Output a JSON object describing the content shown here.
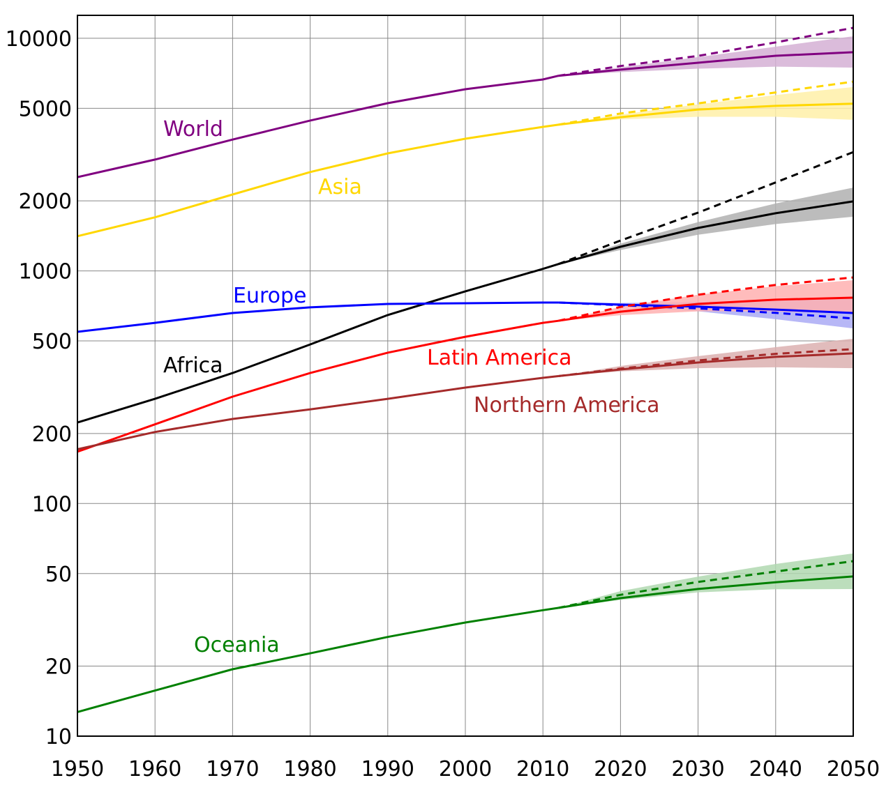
{
  "chart_data": {
    "type": "line",
    "title": "",
    "xlabel": "",
    "ylabel": "",
    "y_scale": "log",
    "xlim": [
      1950,
      2050
    ],
    "ylim": [
      10,
      12500
    ],
    "grid": true,
    "x_ticks": [
      "1950",
      "1960",
      "1970",
      "1980",
      "1990",
      "2000",
      "2010",
      "2020",
      "2030",
      "2040",
      "2050"
    ],
    "y_ticks": [
      "10",
      "20",
      "50",
      "100",
      "200",
      "500",
      "1000",
      "2000",
      "5000",
      "10000"
    ],
    "x": [
      1950,
      1960,
      1970,
      1980,
      1990,
      2000,
      2010
    ],
    "projection_years": [
      2012,
      2020,
      2030,
      2040,
      2050
    ],
    "series": [
      {
        "name": "World",
        "color": "#800080",
        "band_color": "#d5b0d5",
        "values": [
          2530,
          3010,
          3670,
          4430,
          5260,
          6040,
          6650
        ],
        "projection_median": [
          6900,
          7330,
          7850,
          8410,
          8710
        ],
        "projection_high": [
          6900,
          7600,
          8400,
          9600,
          11090
        ],
        "projection_band_low": [
          6900,
          7150,
          7400,
          7550,
          7480
        ],
        "projection_band_high": [
          6900,
          7500,
          8300,
          9200,
          10200
        ]
      },
      {
        "name": "Asia",
        "color": "#ffd700",
        "band_color": "#fff0a8",
        "values": [
          1410,
          1700,
          2130,
          2660,
          3200,
          3700,
          4160
        ],
        "projection_median": [
          4250,
          4580,
          4940,
          5120,
          5230
        ],
        "projection_high": [
          4250,
          4750,
          5250,
          5850,
          6510
        ],
        "projection_band_low": [
          4250,
          4480,
          4600,
          4600,
          4460
        ],
        "projection_band_high": [
          4250,
          4700,
          5200,
          5700,
          6170
        ]
      },
      {
        "name": "Africa",
        "color": "#000000",
        "band_color": "#b0b0b0",
        "values": [
          223,
          282,
          364,
          483,
          646,
          817,
          1020
        ],
        "projection_median": [
          1070,
          1270,
          1530,
          1770,
          1990
        ],
        "projection_high": [
          1070,
          1350,
          1780,
          2400,
          3240
        ],
        "projection_band_low": [
          1070,
          1230,
          1430,
          1590,
          1710
        ],
        "projection_band_high": [
          1070,
          1310,
          1620,
          1950,
          2280
        ]
      },
      {
        "name": "Europe",
        "color": "#0000ff",
        "band_color": "#aaaaf5",
        "values": [
          547,
          598,
          659,
          697,
          721,
          726,
          731
        ],
        "projection_median": [
          731,
          716,
          702,
          682,
          659
        ],
        "projection_high": [
          731,
          712,
          690,
          660,
          624
        ],
        "projection_band_low": [
          731,
          705,
          670,
          620,
          566
        ],
        "projection_band_high": [
          731,
          728,
          735,
          748,
          762
        ]
      },
      {
        "name": "Latin America",
        "color": "#ff0000",
        "band_color": "#ffb0b0",
        "values": [
          167,
          219,
          288,
          364,
          445,
          521,
          598
        ],
        "projection_median": [
          610,
          668,
          721,
          752,
          767
        ],
        "projection_high": [
          610,
          700,
          790,
          870,
          937
        ],
        "projection_band_low": [
          610,
          645,
          670,
          670,
          655
        ],
        "projection_band_high": [
          610,
          700,
          790,
          860,
          912
        ]
      },
      {
        "name": "Northern America",
        "color": "#a52a2a",
        "band_color": "#dcb0b0",
        "values": [
          171,
          203,
          231,
          254,
          282,
          315,
          347
        ],
        "projection_median": [
          353,
          377,
          404,
          427,
          442
        ],
        "projection_high": [
          353,
          380,
          412,
          440,
          461
        ],
        "projection_band_low": [
          353,
          370,
          382,
          385,
          382
        ],
        "projection_band_high": [
          353,
          390,
          430,
          470,
          511
        ]
      },
      {
        "name": "Oceania",
        "color": "#008000",
        "band_color": "#b0d8b0",
        "values": [
          12.7,
          15.7,
          19.4,
          22.7,
          26.7,
          30.8,
          34.8
        ],
        "projection_median": [
          35.6,
          39.2,
          42.9,
          45.9,
          48.6
        ],
        "projection_high": [
          35.6,
          40.5,
          46.0,
          51.0,
          56.5
        ],
        "projection_band_low": [
          35.6,
          38.5,
          41.5,
          42.8,
          42.9
        ],
        "projection_band_high": [
          35.6,
          42.0,
          48.5,
          55.0,
          61.0
        ]
      }
    ]
  }
}
